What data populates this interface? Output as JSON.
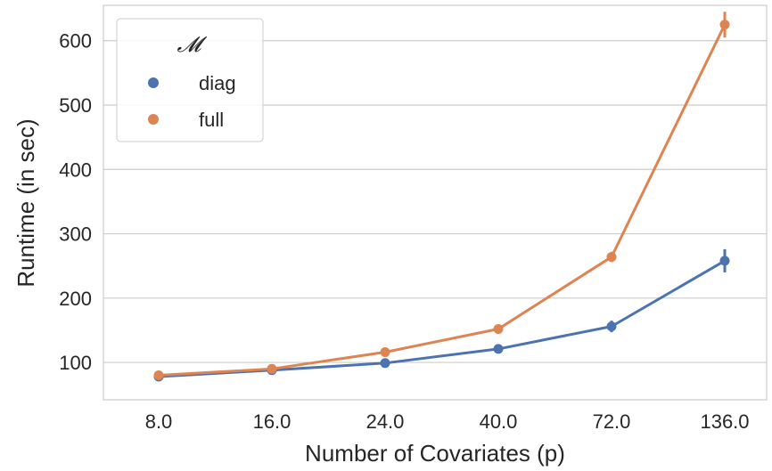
{
  "chart_data": {
    "type": "line",
    "categories": [
      "8.0",
      "16.0",
      "24.0",
      "40.0",
      "72.0",
      "136.0"
    ],
    "xlabel": "Number of Covariates (p)",
    "ylabel": "Runtime (in sec)",
    "ylim": [
      42,
      655
    ],
    "yticks": [
      100,
      200,
      300,
      400,
      500,
      600
    ],
    "grid": "horizontal",
    "legend": {
      "title": "𝓜",
      "placement": "top-left"
    },
    "series": [
      {
        "name": "diag",
        "color": "#4c72b0",
        "values": [
          78,
          88,
          99,
          121,
          156,
          258
        ],
        "error": [
          3,
          3,
          3,
          5,
          9,
          18
        ]
      },
      {
        "name": "full",
        "color": "#dd8452",
        "values": [
          80,
          90,
          116,
          152,
          264,
          625
        ],
        "error": [
          3,
          3,
          3,
          4,
          8,
          20
        ]
      }
    ]
  }
}
